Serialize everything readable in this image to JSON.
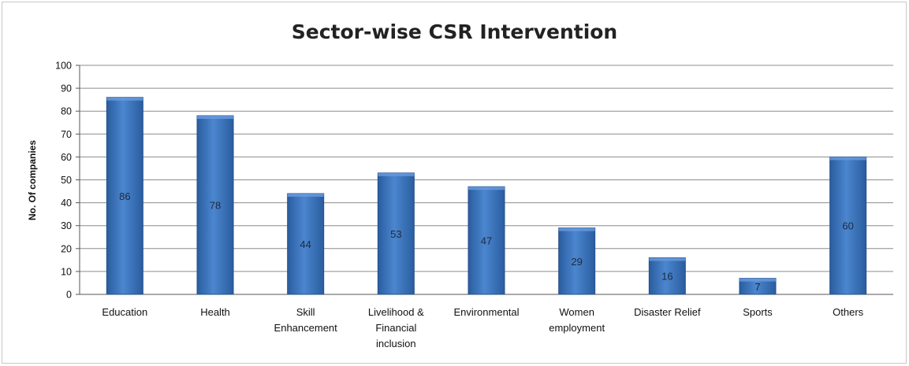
{
  "chart_data": {
    "type": "bar",
    "title": "Sector-wise CSR Intervention",
    "xlabel": "",
    "ylabel": "No. Of companies",
    "ylim": [
      0,
      100
    ],
    "yticks": [
      0,
      10,
      20,
      30,
      40,
      50,
      60,
      70,
      80,
      90,
      100
    ],
    "grid": true,
    "legend": "none",
    "categories": [
      "Education",
      "Health",
      "Skill Enhancement",
      "Livelihood & Financial inclusion",
      "Environmental",
      "Women employment",
      "Disaster Relief",
      "Sports",
      "Others"
    ],
    "category_lines": [
      [
        "Education"
      ],
      [
        "Health"
      ],
      [
        "Skill",
        "Enhancement"
      ],
      [
        "Livelihood &",
        "Financial",
        "inclusion"
      ],
      [
        "Environmental"
      ],
      [
        "Women",
        "employment"
      ],
      [
        "Disaster Relief"
      ],
      [
        "Sports"
      ],
      [
        "Others"
      ]
    ],
    "values": [
      86,
      78,
      44,
      53,
      47,
      29,
      16,
      7,
      60
    ],
    "bar_color": "#3f78c0"
  }
}
